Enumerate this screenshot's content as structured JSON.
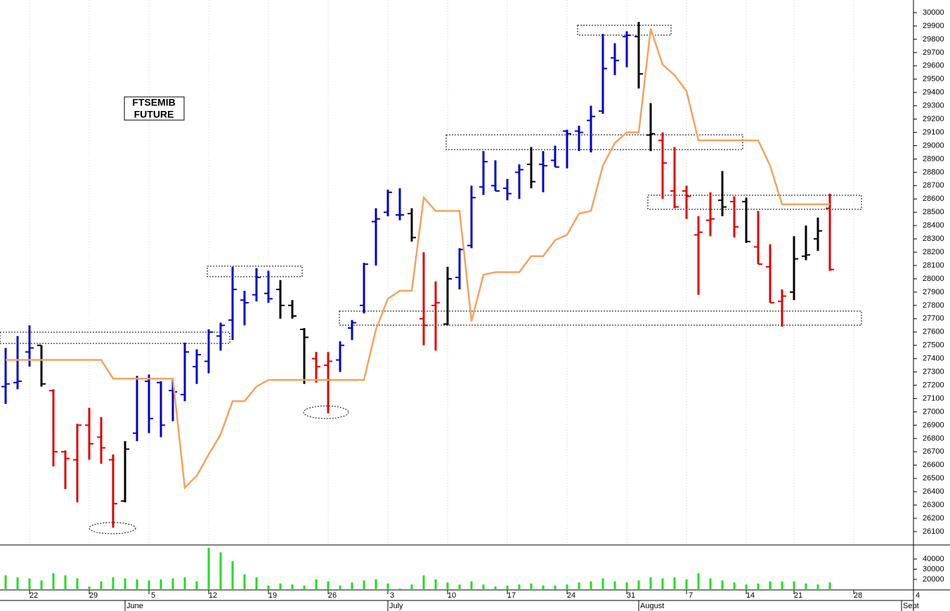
{
  "chart_data": [
    {
      "type": "ohlc",
      "annotations": [
        "FTSEMIB",
        "FUTURE"
      ],
      "open": [
        27190,
        27220,
        27450,
        27500,
        27160,
        26700,
        26640,
        26900,
        26810,
        26640,
        26330,
        26840,
        27230,
        27220,
        27160,
        27130,
        27340,
        27380,
        27570,
        27690,
        27840,
        27880,
        27890,
        27920,
        27800,
        27620,
        27400,
        27350,
        27390,
        27630,
        27800,
        28430,
        28500,
        28480,
        28490,
        27700,
        27800,
        27660,
        28010,
        28250,
        28690,
        28700,
        28680,
        28800,
        28860,
        28860,
        28890,
        29110,
        29110,
        29190,
        29260,
        29660,
        29820,
        29820,
        29080,
        29040,
        28660,
        28660,
        28330,
        28440,
        28590,
        28580,
        28580,
        28240,
        28090,
        27830,
        27900,
        28170,
        28300,
        28530
      ],
      "high": [
        27480,
        27570,
        27650,
        27500,
        27170,
        26710,
        26910,
        27030,
        26960,
        26680,
        26780,
        27270,
        27280,
        27230,
        27240,
        27520,
        27470,
        27620,
        27670,
        28090,
        27910,
        28080,
        28060,
        27990,
        27840,
        27630,
        27450,
        27450,
        27530,
        27690,
        28120,
        28530,
        28670,
        28680,
        28530,
        28200,
        27980,
        28090,
        28230,
        28700,
        28960,
        28890,
        28750,
        28860,
        28990,
        28960,
        29000,
        29120,
        29150,
        29300,
        29840,
        29770,
        29860,
        29930,
        29320,
        29100,
        28990,
        28700,
        28470,
        28650,
        28810,
        28620,
        28610,
        28510,
        28260,
        27920,
        28320,
        28400,
        28460,
        28640
      ],
      "low": [
        27060,
        27170,
        27340,
        27190,
        26590,
        26420,
        26320,
        26640,
        26610,
        26130,
        26320,
        26780,
        26840,
        26810,
        26930,
        27080,
        27210,
        27290,
        27460,
        27540,
        27650,
        27830,
        27820,
        27700,
        27700,
        27210,
        27220,
        26990,
        27300,
        27540,
        27740,
        28100,
        28470,
        28440,
        28280,
        27500,
        27460,
        27650,
        27920,
        28230,
        28630,
        28660,
        28590,
        28600,
        28680,
        28650,
        28840,
        28830,
        28960,
        28950,
        29240,
        29530,
        29590,
        29430,
        28960,
        28600,
        28530,
        28450,
        27880,
        28320,
        28470,
        28310,
        28270,
        28110,
        27820,
        27640,
        27840,
        28140,
        28210,
        28060
      ],
      "close": [
        27210,
        27230,
        27480,
        27210,
        26700,
        26650,
        26900,
        26760,
        26730,
        26310,
        26720,
        27250,
        26950,
        26900,
        27150,
        27450,
        27430,
        27600,
        27650,
        27920,
        27820,
        28010,
        27850,
        27800,
        27720,
        27560,
        27340,
        27380,
        27500,
        27670,
        28110,
        28450,
        28650,
        28480,
        28310,
        27650,
        27820,
        28000,
        28220,
        28610,
        28880,
        28660,
        28640,
        28820,
        28730,
        28850,
        28840,
        29090,
        29100,
        29220,
        29580,
        29640,
        29830,
        29540,
        29090,
        28870,
        28540,
        28620,
        28350,
        28450,
        28540,
        28390,
        28280,
        28110,
        27820,
        27870,
        28150,
        28180,
        28360,
        28070
      ],
      "colors": [
        "#0000cc",
        "#0000cc",
        "#0000cc",
        "#000000",
        "#e00000",
        "#e00000",
        "#e00000",
        "#e00000",
        "#e00000",
        "#e00000",
        "#000000",
        "#0000cc",
        "#0000cc",
        "#0000cc",
        "#0000cc",
        "#0000cc",
        "#0000cc",
        "#0000cc",
        "#0000cc",
        "#0000cc",
        "#0000cc",
        "#0000cc",
        "#0000cc",
        "#000000",
        "#000000",
        "#000000",
        "#e00000",
        "#e00000",
        "#0000cc",
        "#0000cc",
        "#0000cc",
        "#0000cc",
        "#0000cc",
        "#0000cc",
        "#000000",
        "#e00000",
        "#e00000",
        "#000000",
        "#0000cc",
        "#0000cc",
        "#0000cc",
        "#0000cc",
        "#0000cc",
        "#0000cc",
        "#000000",
        "#0000cc",
        "#0000cc",
        "#0000cc",
        "#0000cc",
        "#0000cc",
        "#0000cc",
        "#0000cc",
        "#0000cc",
        "#000000",
        "#000000",
        "#e00000",
        "#e00000",
        "#e00000",
        "#e00000",
        "#e00000",
        "#000000",
        "#e00000",
        "#000000",
        "#e00000",
        "#e00000",
        "#e00000",
        "#000000",
        "#000000",
        "#000000",
        "#e00000"
      ],
      "line": {
        "color": "#f5a25d",
        "values": [
          27390,
          27390,
          27390,
          27390,
          27390,
          27390,
          27390,
          27390,
          27390,
          27250,
          27250,
          27250,
          27250,
          27250,
          27250,
          26430,
          26520,
          26680,
          26830,
          27080,
          27080,
          27190,
          27240,
          27240,
          27240,
          27240,
          27240,
          27240,
          27240,
          27240,
          27240,
          27620,
          27850,
          27910,
          27910,
          28610,
          28510,
          28510,
          28510,
          27680,
          28030,
          28050,
          28050,
          28050,
          28170,
          28170,
          28290,
          28330,
          28490,
          28510,
          28850,
          29020,
          29100,
          29100,
          29880,
          29610,
          29530,
          29410,
          29040,
          29040,
          29040,
          29040,
          29040,
          29040,
          28850,
          28560,
          28560,
          28560,
          28560,
          28560
        ]
      },
      "ylim": [
        26005,
        30095
      ],
      "yticks": [
        26100,
        26200,
        26300,
        26400,
        26500,
        26600,
        26700,
        26800,
        26900,
        27000,
        27100,
        27200,
        27300,
        27400,
        27500,
        27600,
        27700,
        27800,
        27900,
        28000,
        28100,
        28200,
        28300,
        28400,
        28500,
        28600,
        28700,
        28800,
        28900,
        29000,
        29100,
        29200,
        29300,
        29400,
        29500,
        29600,
        29700,
        29800,
        29900,
        30000
      ]
    },
    {
      "type": "bar",
      "color": "#22dd22",
      "values": [
        24000,
        22000,
        21000,
        19000,
        26000,
        24000,
        21000,
        13000,
        18000,
        22000,
        21000,
        20000,
        19000,
        20000,
        21000,
        22000,
        18000,
        51000,
        46500,
        38000,
        25000,
        22000,
        14000,
        16000,
        15000,
        14000,
        20000,
        18000,
        14000,
        17000,
        19000,
        20000,
        16000,
        11000,
        15000,
        24000,
        20000,
        17000,
        15000,
        18000,
        15000,
        13000,
        14000,
        15000,
        16000,
        14000,
        14000,
        15000,
        17000,
        18000,
        21000,
        18000,
        17000,
        19000,
        22000,
        21000,
        22000,
        20000,
        26000,
        21000,
        19000,
        17000,
        15000,
        16000,
        18000,
        18000,
        18000,
        16000,
        15000,
        17000
      ],
      "ylim": [
        9650,
        53100
      ],
      "yticks": [
        20000,
        30000,
        40000
      ],
      "xticks": [
        {
          "value": 2,
          "label": "22"
        },
        {
          "value": 7,
          "label": "29"
        },
        {
          "value": 12,
          "label": "5"
        },
        {
          "value": 17,
          "label": "12"
        },
        {
          "value": 22,
          "label": "19"
        },
        {
          "value": 27,
          "label": "26"
        },
        {
          "value": 32,
          "label": "3"
        },
        {
          "value": 37,
          "label": "10"
        },
        {
          "value": 42,
          "label": "17"
        },
        {
          "value": 47,
          "label": "24"
        },
        {
          "value": 52,
          "label": "31"
        },
        {
          "value": 57,
          "label": "7"
        },
        {
          "value": 62,
          "label": "14"
        },
        {
          "value": 66,
          "label": "21"
        },
        {
          "value": 71,
          "label": "28"
        },
        {
          "value": 76,
          "label": "4"
        }
      ],
      "month_labels": [
        {
          "value": 10,
          "label": "June"
        },
        {
          "value": 32,
          "label": "July"
        },
        {
          "value": 53,
          "label": "August"
        },
        {
          "value": 75,
          "label": "Sept"
        }
      ]
    }
  ]
}
